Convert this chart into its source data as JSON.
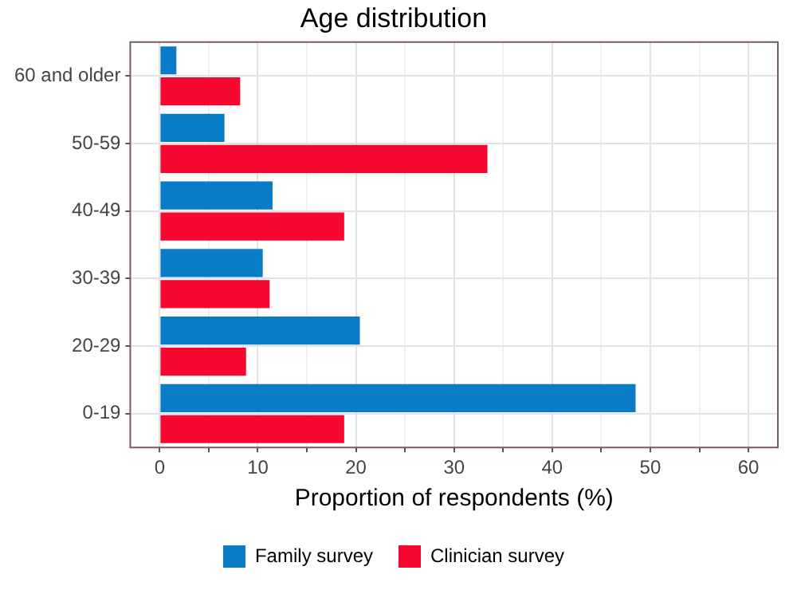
{
  "chart_data": {
    "type": "bar",
    "orientation": "horizontal",
    "title": "Age distribution",
    "xlabel": "Proportion of respondents (%)",
    "categories": [
      "60 and older",
      "50-59",
      "40-49",
      "30-39",
      "20-29",
      "0-19"
    ],
    "series": [
      {
        "name": "Family survey",
        "color": "#0a7bc6",
        "values": [
          1.7,
          6.6,
          11.5,
          10.5,
          20.4,
          48.5
        ]
      },
      {
        "name": "Clinician survey",
        "color": "#f5072f",
        "values": [
          8.2,
          33.4,
          18.8,
          11.2,
          8.8,
          18.8
        ]
      }
    ],
    "xlim": [
      -3,
      63
    ],
    "xticks": [
      0,
      {
        "value": 5,
        "label": null
      },
      10,
      {
        "value": 15,
        "label": null
      },
      20,
      {
        "value": 25,
        "label": null
      },
      30,
      {
        "value": 35,
        "label": null
      },
      40,
      {
        "value": 45,
        "label": null
      },
      50,
      {
        "value": 55,
        "label": null
      },
      60
    ],
    "grid": true,
    "legend": "bottom"
  }
}
